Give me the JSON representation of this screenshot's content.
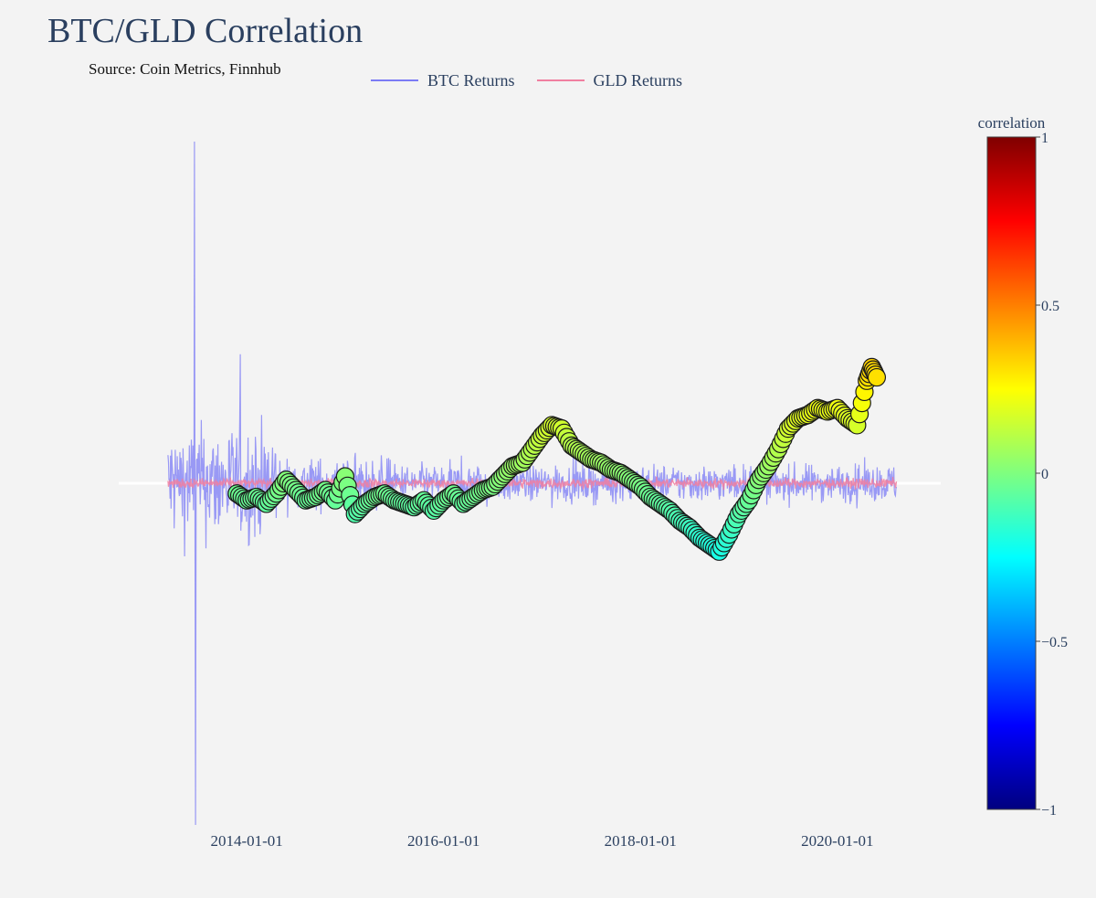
{
  "chart_data": {
    "type": "line+scatter",
    "title": "BTC/GLD Correlation",
    "subtitle": "Source: Coin Metrics, Finnhub",
    "legend": [
      {
        "name": "BTC Returns",
        "color": "#7b7bf5"
      },
      {
        "name": "GLD Returns",
        "color": "#f07fa0"
      }
    ],
    "x_tick_labels": [
      "2014-01-01",
      "2016-01-01",
      "2018-01-01",
      "2020-01-01"
    ],
    "x_ticks": [
      2014.0,
      2016.0,
      2018.0,
      2020.0
    ],
    "xlim": [
      2012.7,
      2021.05
    ],
    "ylim": [
      -1.0,
      1.0
    ],
    "zero_line": true,
    "btc_returns_range": [
      2013.2,
      2020.6
    ],
    "gld_returns_range": [
      2013.2,
      2020.6
    ],
    "correlation_series": {
      "x": [
        2013.9,
        2014.0,
        2014.1,
        2014.2,
        2014.3,
        2014.4,
        2014.5,
        2014.6,
        2014.7,
        2014.8,
        2014.9,
        2015.0,
        2015.1,
        2015.2,
        2015.3,
        2015.4,
        2015.5,
        2015.6,
        2015.7,
        2015.8,
        2015.9,
        2016.0,
        2016.1,
        2016.2,
        2016.3,
        2016.4,
        2016.5,
        2016.6,
        2016.7,
        2016.8,
        2016.9,
        2017.0,
        2017.1,
        2017.2,
        2017.3,
        2017.4,
        2017.5,
        2017.6,
        2017.7,
        2017.8,
        2017.9,
        2018.0,
        2018.1,
        2018.2,
        2018.3,
        2018.4,
        2018.5,
        2018.6,
        2018.7,
        2018.8,
        2018.9,
        2019.0,
        2019.1,
        2019.2,
        2019.3,
        2019.4,
        2019.5,
        2019.6,
        2019.7,
        2019.8,
        2019.9,
        2020.0,
        2020.1,
        2020.2,
        2020.3,
        2020.35,
        2020.4
      ],
      "y": [
        -0.03,
        -0.05,
        -0.04,
        -0.06,
        -0.03,
        0.01,
        -0.02,
        -0.05,
        -0.04,
        -0.02,
        -0.05,
        0.02,
        -0.09,
        -0.06,
        -0.04,
        -0.03,
        -0.05,
        -0.06,
        -0.07,
        -0.05,
        -0.08,
        -0.05,
        -0.03,
        -0.06,
        -0.04,
        -0.02,
        -0.01,
        0.02,
        0.05,
        0.06,
        0.1,
        0.14,
        0.17,
        0.16,
        0.11,
        0.09,
        0.07,
        0.06,
        0.04,
        0.03,
        0.01,
        -0.01,
        -0.04,
        -0.06,
        -0.08,
        -0.11,
        -0.13,
        -0.16,
        -0.18,
        -0.2,
        -0.15,
        -0.09,
        -0.05,
        0.01,
        0.05,
        0.1,
        0.16,
        0.19,
        0.2,
        0.22,
        0.21,
        0.22,
        0.19,
        0.17,
        0.3,
        0.34,
        0.31
      ],
      "marker_color": "correlation"
    },
    "colorbar": {
      "title": "correlation",
      "range": [
        -1,
        1
      ],
      "tick_values": [
        1,
        0.5,
        0,
        -0.5,
        -1
      ],
      "tick_labels": [
        "1",
        "0.5",
        "0",
        "−0.5",
        "−1"
      ],
      "colorscale": [
        "#00007f",
        "#0000ff",
        "#007fff",
        "#00ffff",
        "#7fff7f",
        "#ffff00",
        "#ff7f00",
        "#ff0000",
        "#7f0000"
      ]
    }
  }
}
